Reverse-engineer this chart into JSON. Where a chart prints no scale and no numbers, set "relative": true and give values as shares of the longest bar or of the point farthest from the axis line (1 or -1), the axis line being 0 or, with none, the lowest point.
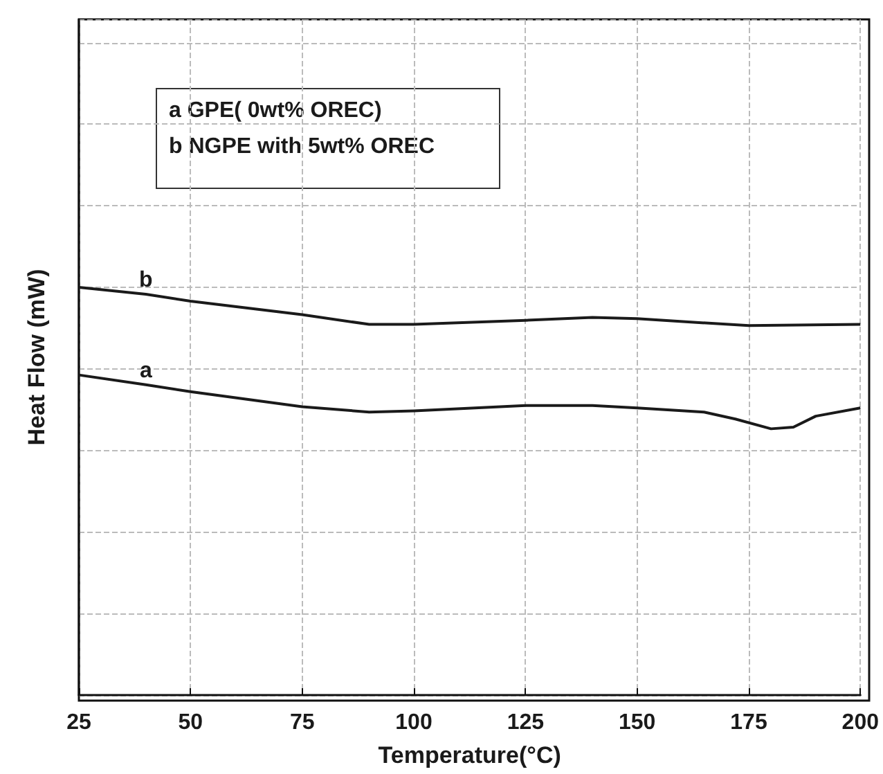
{
  "chart_data": {
    "type": "line",
    "relative": true,
    "xlabel": "Temperature(°C)",
    "ylabel": "Heat Flow (mW)",
    "xlim": [
      25,
      200
    ],
    "xticks": [
      25,
      50,
      75,
      100,
      125,
      150,
      175,
      200
    ],
    "grid": true,
    "legend": false,
    "marker": "none",
    "line_style": "solid",
    "annotations": [
      "a GPE( 0wt% OREC)",
      "b NGPE with 5wt% OREC"
    ],
    "series": [
      {
        "name": "b",
        "color": "#1a1a1a",
        "x": [
          25,
          40,
          50,
          75,
          90,
          100,
          125,
          140,
          150,
          175,
          200
        ],
        "values": [
          1,
          0.983,
          0.966,
          0.933,
          0.909,
          0.909,
          0.919,
          0.926,
          0.923,
          0.906,
          0.909
        ]
      },
      {
        "name": "a",
        "color": "#1a1a1a",
        "x": [
          25,
          40,
          50,
          75,
          90,
          100,
          125,
          140,
          150,
          165,
          172,
          180,
          185,
          190,
          200
        ],
        "values": [
          0.785,
          0.761,
          0.744,
          0.707,
          0.694,
          0.697,
          0.71,
          0.71,
          0.704,
          0.694,
          0.677,
          0.653,
          0.657,
          0.684,
          0.704
        ]
      }
    ]
  }
}
